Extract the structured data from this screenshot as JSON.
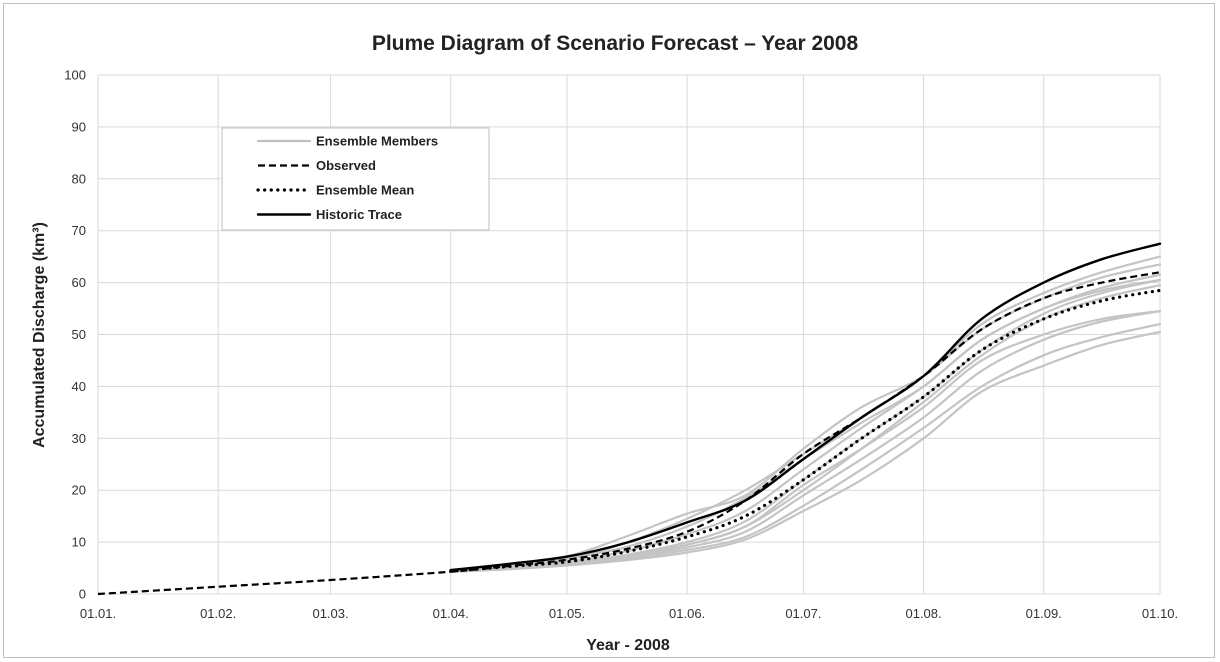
{
  "chart_data": {
    "type": "line",
    "title": "Plume Diagram of Scenario Forecast – Year 2008",
    "xlabel": "Year - 2008",
    "ylabel": "Accumulated  Discharge (km³)",
    "x_tick_labels": [
      "01.01.",
      "01.02.",
      "01.03.",
      "01.04.",
      "01.05.",
      "01.06.",
      "01.07.",
      "01.08.",
      "01.09.",
      "01.10."
    ],
    "x_tick_dates": [
      "2008-01-01",
      "2008-02-01",
      "2008-03-01",
      "2008-04-01",
      "2008-05-01",
      "2008-06-01",
      "2008-07-01",
      "2008-08-01",
      "2008-09-01",
      "2008-10-01"
    ],
    "y_ticks": [
      0,
      10,
      20,
      30,
      40,
      50,
      60,
      70,
      80,
      90,
      100
    ],
    "ylim": [
      0,
      100
    ],
    "grid": true,
    "legend_position": "top-left",
    "legend": [
      {
        "label": "Ensemble Members",
        "style": "solid",
        "color": "#bfbfbf"
      },
      {
        "label": "Observed",
        "style": "dashed",
        "color": "#000000"
      },
      {
        "label": "Ensemble Mean",
        "style": "dotted",
        "color": "#000000"
      },
      {
        "label": "Historic Trace",
        "style": "solid",
        "color": "#000000"
      }
    ],
    "x": [
      "2008-01-01",
      "2008-02-01",
      "2008-03-01",
      "2008-04-01",
      "2008-04-16",
      "2008-05-01",
      "2008-05-16",
      "2008-06-01",
      "2008-06-16",
      "2008-07-01",
      "2008-07-16",
      "2008-08-01",
      "2008-08-16",
      "2008-09-01",
      "2008-09-16",
      "2008-10-01"
    ],
    "series": [
      {
        "name": "Observed",
        "style": "dashed",
        "values": [
          0,
          1.4,
          2.7,
          4.3,
          5.4,
          6.6,
          8.6,
          12,
          18,
          27,
          34,
          42,
          51,
          57,
          60,
          62
        ]
      },
      {
        "name": "Historic Trace",
        "style": "solid",
        "values": [
          null,
          null,
          null,
          4.6,
          5.8,
          7.2,
          9.8,
          13.8,
          18,
          26,
          34,
          42,
          53,
          60,
          64.5,
          67.5
        ]
      },
      {
        "name": "Ensemble Mean",
        "style": "dotted",
        "values": [
          null,
          null,
          null,
          4.4,
          5.3,
          6.2,
          8.1,
          11,
          15,
          22,
          30,
          38,
          47,
          53,
          56.5,
          58.5
        ]
      },
      {
        "name": "",
        "style": "ensemble",
        "values": [
          null,
          null,
          null,
          4.3,
          5.2,
          6.6,
          9.8,
          14.5,
          20,
          27,
          34,
          42,
          52,
          58,
          62,
          65
        ]
      },
      {
        "name": "",
        "style": "ensemble",
        "values": [
          null,
          null,
          null,
          4.3,
          5.4,
          7.2,
          11,
          15.5,
          19,
          28,
          36,
          42,
          51,
          57,
          61,
          63.5
        ]
      },
      {
        "name": "",
        "style": "ensemble",
        "values": [
          null,
          null,
          null,
          4.3,
          5.1,
          6.2,
          8.2,
          11.5,
          16,
          24,
          32,
          40,
          49,
          55,
          59,
          61.5
        ]
      },
      {
        "name": "",
        "style": "ensemble",
        "values": [
          null,
          null,
          null,
          4.3,
          5.0,
          6.0,
          7.5,
          10,
          14,
          22,
          30,
          38,
          47,
          54,
          58,
          60.5
        ]
      },
      {
        "name": "",
        "style": "ensemble",
        "values": [
          null,
          null,
          null,
          4.3,
          5.0,
          5.9,
          7.2,
          9.5,
          13,
          20,
          28,
          37,
          46,
          53,
          57,
          59.5
        ]
      },
      {
        "name": "",
        "style": "ensemble",
        "values": [
          null,
          null,
          null,
          4.3,
          4.9,
          5.8,
          7.0,
          9,
          12,
          19,
          26,
          34,
          43,
          49,
          52.5,
          54.5
        ]
      },
      {
        "name": "",
        "style": "ensemble",
        "values": [
          null,
          null,
          null,
          4.3,
          4.8,
          5.6,
          6.8,
          8.5,
          11,
          17,
          24,
          32,
          40,
          46,
          49.5,
          52
        ]
      },
      {
        "name": "",
        "style": "ensemble",
        "values": [
          null,
          null,
          null,
          4.3,
          4.8,
          5.5,
          6.5,
          8,
          10.5,
          16,
          22,
          30,
          39,
          44,
          48,
          50.5
        ]
      },
      {
        "name": "",
        "style": "ensemble",
        "values": [
          null,
          null,
          null,
          4.3,
          4.9,
          5.7,
          7.2,
          9.5,
          13,
          21,
          28,
          36,
          45,
          50,
          53,
          54.5
        ]
      },
      {
        "name": "",
        "style": "ensemble",
        "values": [
          null,
          null,
          null,
          4.3,
          5.3,
          6.8,
          9,
          13,
          18.5,
          26,
          33,
          40,
          49,
          55,
          58.5,
          60.5
        ]
      }
    ]
  }
}
